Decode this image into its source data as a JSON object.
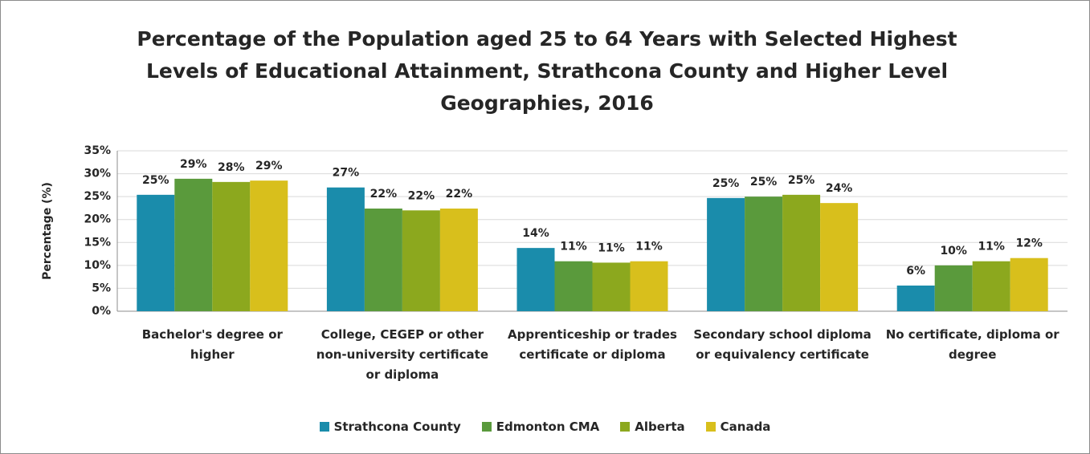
{
  "chart_data": {
    "type": "bar",
    "title": "Percentage of the Population aged 25 to 64 Years with Selected Highest Levels of Educational Attainment, Strathcona County and Higher Level Geographies, 2016",
    "y_label": "Percentage (%)",
    "categories": [
      "Bachelor's degree or higher",
      "College, CEGEP or other non-university certificate or diploma",
      "Apprenticeship or trades certificate or diploma",
      "Secondary school diploma or equivalency certificate",
      "No certificate, diploma or degree"
    ],
    "series": [
      {
        "name": "Strathcona County",
        "color": "#1a8cab",
        "values": [
          25.4,
          27.0,
          13.8,
          24.7,
          5.6
        ],
        "value_labels": [
          "25%",
          "27%",
          "14%",
          "25%",
          "6%"
        ]
      },
      {
        "name": "Edmonton CMA",
        "color": "#5a9a3c",
        "values": [
          28.9,
          22.4,
          10.9,
          25.0,
          10.0
        ],
        "value_labels": [
          "29%",
          "22%",
          "11%",
          "25%",
          "10%"
        ]
      },
      {
        "name": "Alberta",
        "color": "#8ca81e",
        "values": [
          28.2,
          22.0,
          10.6,
          25.4,
          10.9
        ],
        "value_labels": [
          "28%",
          "22%",
          "11%",
          "25%",
          "11%"
        ]
      },
      {
        "name": "Canada",
        "color": "#d8bf1c",
        "values": [
          28.5,
          22.4,
          10.9,
          23.6,
          11.6
        ],
        "value_labels": [
          "29%",
          "22%",
          "11%",
          "24%",
          "12%"
        ]
      }
    ],
    "ylim": [
      0,
      35
    ],
    "yticks": [
      {
        "value": 0,
        "label": "0%"
      },
      {
        "value": 5,
        "label": "5%"
      },
      {
        "value": 10,
        "label": "10%"
      },
      {
        "value": 15,
        "label": "15%"
      },
      {
        "value": 20,
        "label": "20%"
      },
      {
        "value": 25,
        "label": "25%"
      },
      {
        "value": 30,
        "label": "30%"
      },
      {
        "value": 35,
        "label": "35%"
      }
    ],
    "grid": true,
    "legend": "bottom"
  }
}
